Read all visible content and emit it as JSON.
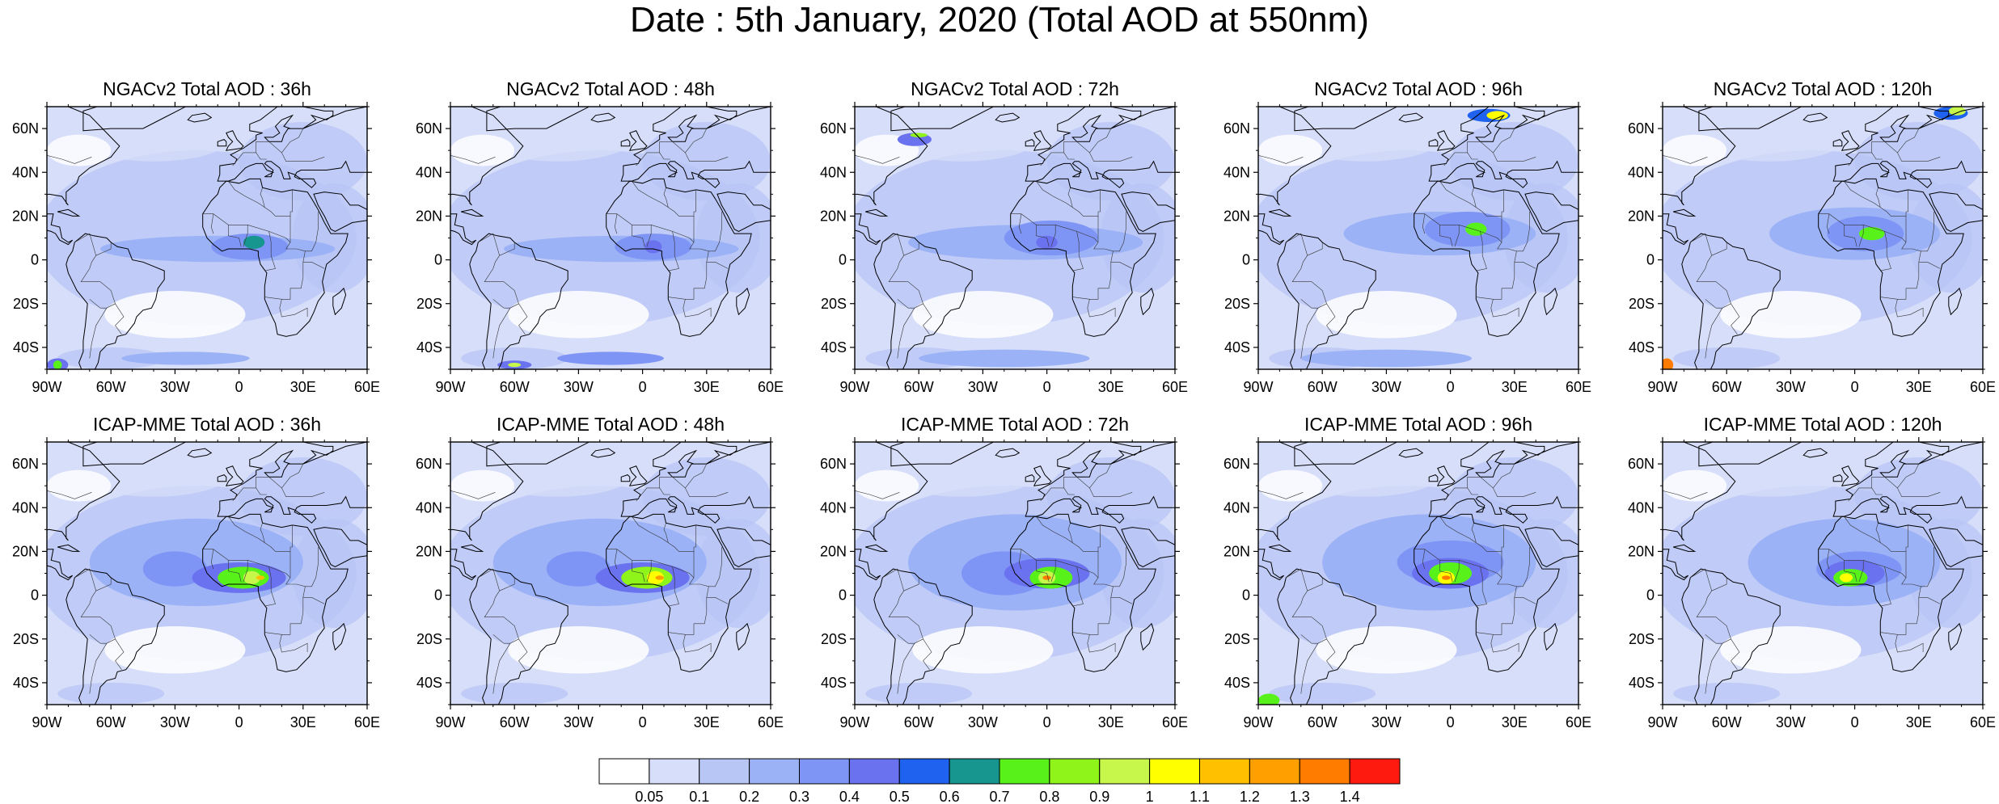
{
  "figure": {
    "title": "Date : 5th January, 2020 (Total AOD at 550nm)"
  },
  "axes": {
    "lon_ticks": [
      "90W",
      "60W",
      "30W",
      "0",
      "30E",
      "60E"
    ],
    "lat_ticks": [
      "60N",
      "40N",
      "20N",
      "0",
      "20S",
      "40S"
    ]
  },
  "panels": [
    {
      "title": "NGACv2 Total AOD : 36h",
      "model": "NGACv2",
      "lead_hours": 36
    },
    {
      "title": "NGACv2 Total AOD : 48h",
      "model": "NGACv2",
      "lead_hours": 48
    },
    {
      "title": "NGACv2 Total AOD : 72h",
      "model": "NGACv2",
      "lead_hours": 72
    },
    {
      "title": "NGACv2 Total AOD : 96h",
      "model": "NGACv2",
      "lead_hours": 96
    },
    {
      "title": "NGACv2 Total AOD : 120h",
      "model": "NGACv2",
      "lead_hours": 120
    },
    {
      "title": "ICAP-MME Total AOD : 36h",
      "model": "ICAP-MME",
      "lead_hours": 36
    },
    {
      "title": "ICAP-MME Total AOD : 48h",
      "model": "ICAP-MME",
      "lead_hours": 48
    },
    {
      "title": "ICAP-MME Total AOD : 72h",
      "model": "ICAP-MME",
      "lead_hours": 72
    },
    {
      "title": "ICAP-MME Total AOD : 96h",
      "model": "ICAP-MME",
      "lead_hours": 96
    },
    {
      "title": "ICAP-MME Total AOD : 120h",
      "model": "ICAP-MME",
      "lead_hours": 120
    }
  ],
  "map_extent": {
    "lon": [
      -90,
      60
    ],
    "lat": [
      -50,
      70
    ]
  },
  "colorbar": {
    "labels": [
      "0.05",
      "0.1",
      "0.2",
      "0.3",
      "0.4",
      "0.5",
      "0.6",
      "0.7",
      "0.8",
      "0.9",
      "1",
      "1.1",
      "1.2",
      "1.3",
      "1.4"
    ],
    "colors": [
      "#ffffff",
      "#d7def9",
      "#b8c6f6",
      "#9cb2f7",
      "#7f95f5",
      "#6b72ef",
      "#1f62f0",
      "#16968f",
      "#58f21a",
      "#8ef41a",
      "#c6f74a",
      "#ffff00",
      "#ffc000",
      "#ffa000",
      "#ff7c00",
      "#ff1a10"
    ]
  }
}
